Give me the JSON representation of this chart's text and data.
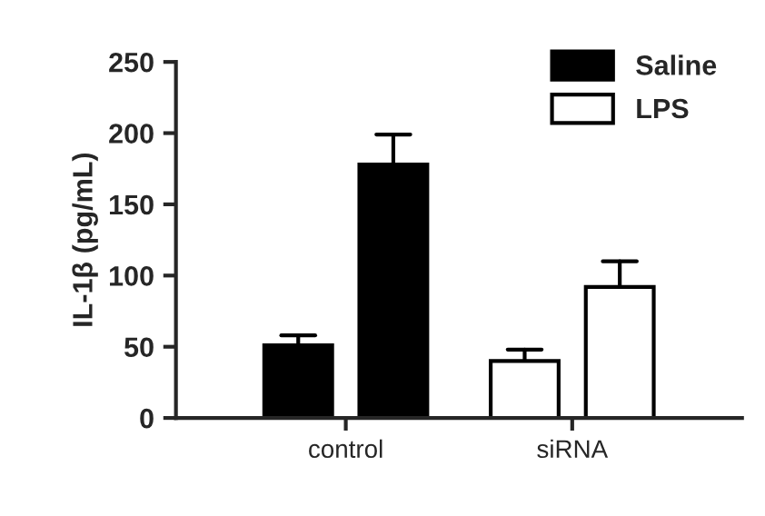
{
  "chart_data": {
    "type": "bar",
    "ylabel": "IL-1β (pg/mL)",
    "categories": [
      "control",
      "siRNA"
    ],
    "series": [
      {
        "name": "Saline",
        "color": "#000000",
        "colors": [
          "#000000",
          "#ffffff"
        ],
        "values": [
          51,
          40
        ],
        "errors": [
          7,
          8
        ]
      },
      {
        "name": "LPS",
        "color": "#ffffff",
        "colors": [
          "#000000",
          "#ffffff"
        ],
        "values": [
          178,
          92
        ],
        "errors": [
          21,
          18
        ]
      }
    ],
    "ylim": [
      0,
      250
    ],
    "yticks": [
      0,
      50,
      100,
      150,
      200,
      250
    ],
    "grid": false,
    "legend": "top right"
  }
}
